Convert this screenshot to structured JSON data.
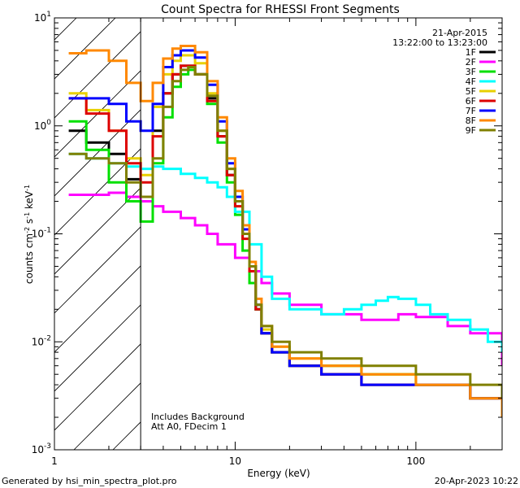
{
  "chart_data": {
    "type": "line",
    "title": "Count Spectra for RHESSI Front Segments",
    "xlabel": "Energy (keV)",
    "ylabel": "counts cm^-2 s^-1 keV^-1",
    "xscale": "log",
    "yscale": "log",
    "xlim": [
      1,
      300
    ],
    "ylim": [
      0.001,
      10
    ],
    "x_ticks": [
      "10",
      "100"
    ],
    "x_tick_values": [
      10,
      100
    ],
    "y_ticks": [
      "10^-3",
      "10^-2",
      "10^-1",
      "10^0",
      "10^1"
    ],
    "y_tick_values": [
      0.001,
      0.01,
      0.1,
      1,
      10
    ],
    "annotation_date": "21-Apr-2015",
    "annotation_time": "13:22:00 to 13:23:00",
    "lower_threshold_keV": 3,
    "notes": [
      "Includes Background",
      "Att A0, FDecim 1"
    ],
    "series": [
      {
        "name": "1F",
        "color": "#000000",
        "x": [
          1.2,
          1.5,
          2,
          2.5,
          3,
          3.5,
          4,
          4.5,
          5,
          5.5,
          6,
          7,
          8,
          9,
          10,
          11,
          12,
          13,
          14,
          16,
          20,
          30,
          50,
          100,
          200,
          300
        ],
        "y": [
          0.9,
          0.7,
          0.55,
          0.32,
          0.22,
          0.9,
          2.0,
          3.0,
          3.6,
          3.6,
          3.0,
          1.8,
          0.8,
          0.35,
          0.2,
          0.1,
          0.05,
          0.02,
          0.012,
          0.008,
          0.006,
          0.005,
          0.004,
          0.004,
          0.003,
          0.002
        ]
      },
      {
        "name": "2F",
        "color": "#ff00ff",
        "x": [
          1.2,
          1.5,
          2,
          2.5,
          3,
          3.5,
          4,
          5,
          6,
          7,
          8,
          10,
          12,
          14,
          16,
          20,
          30,
          50,
          80,
          100,
          150,
          200,
          300
        ],
        "y": [
          0.23,
          0.23,
          0.24,
          0.22,
          0.2,
          0.18,
          0.16,
          0.14,
          0.12,
          0.1,
          0.08,
          0.06,
          0.045,
          0.035,
          0.028,
          0.022,
          0.018,
          0.016,
          0.018,
          0.017,
          0.014,
          0.012,
          0.006
        ]
      },
      {
        "name": "3F",
        "color": "#00e000",
        "x": [
          1.2,
          1.5,
          2,
          2.5,
          3,
          3.5,
          4,
          4.5,
          5,
          5.5,
          6,
          7,
          8,
          9,
          10,
          11,
          12,
          13,
          14,
          16,
          20,
          30,
          50,
          100,
          200,
          300
        ],
        "y": [
          1.1,
          0.6,
          0.3,
          0.2,
          0.13,
          0.45,
          1.2,
          2.3,
          3.0,
          3.3,
          3.0,
          1.6,
          0.7,
          0.3,
          0.15,
          0.07,
          0.035,
          0.02,
          0.012,
          0.008,
          0.006,
          0.006,
          0.005,
          0.004,
          0.003,
          0.002
        ]
      },
      {
        "name": "4F",
        "color": "#00ffff",
        "x": [
          1.2,
          1.5,
          2,
          2.5,
          3,
          3.5,
          4,
          5,
          6,
          7,
          8,
          9,
          10,
          12,
          14,
          16,
          20,
          30,
          40,
          50,
          60,
          70,
          80,
          100,
          120,
          150,
          200,
          250,
          300
        ],
        "y": [
          0.55,
          0.5,
          0.45,
          0.42,
          0.4,
          0.42,
          0.4,
          0.36,
          0.33,
          0.3,
          0.27,
          0.22,
          0.16,
          0.08,
          0.04,
          0.025,
          0.02,
          0.018,
          0.02,
          0.022,
          0.024,
          0.026,
          0.025,
          0.022,
          0.018,
          0.016,
          0.013,
          0.01,
          0.008
        ]
      },
      {
        "name": "5F",
        "color": "#e8d000",
        "x": [
          1.2,
          1.5,
          2,
          2.5,
          3,
          3.5,
          4,
          4.5,
          5,
          5.5,
          6,
          7,
          8,
          9,
          10,
          11,
          12,
          13,
          14,
          16,
          20,
          30,
          50,
          100,
          200,
          300
        ],
        "y": [
          2.0,
          1.4,
          0.9,
          0.5,
          0.35,
          1.5,
          3.0,
          4.0,
          4.5,
          4.5,
          3.8,
          2.0,
          0.9,
          0.4,
          0.2,
          0.1,
          0.05,
          0.022,
          0.013,
          0.009,
          0.007,
          0.006,
          0.005,
          0.004,
          0.003,
          0.002
        ]
      },
      {
        "name": "6F",
        "color": "#dd0000",
        "x": [
          1.2,
          1.5,
          2,
          2.5,
          3,
          3.5,
          4,
          4.5,
          5,
          5.5,
          6,
          7,
          8,
          9,
          10,
          11,
          12,
          13,
          14,
          16,
          20,
          30,
          50,
          100,
          200,
          300
        ],
        "y": [
          1.8,
          1.3,
          0.9,
          0.45,
          0.3,
          0.8,
          2.0,
          3.0,
          3.6,
          3.6,
          3.0,
          1.7,
          0.8,
          0.35,
          0.18,
          0.09,
          0.045,
          0.02,
          0.012,
          0.008,
          0.006,
          0.005,
          0.004,
          0.004,
          0.003,
          0.002
        ]
      },
      {
        "name": "7F",
        "color": "#0000ff",
        "x": [
          1.2,
          1.5,
          2,
          2.5,
          3,
          3.5,
          4,
          4.5,
          5,
          5.5,
          6,
          7,
          8,
          9,
          10,
          11,
          12,
          13,
          14,
          16,
          20,
          30,
          50,
          100,
          200,
          300
        ],
        "y": [
          1.8,
          1.8,
          1.6,
          1.1,
          0.9,
          1.6,
          3.5,
          4.5,
          5.0,
          5.0,
          4.3,
          2.4,
          1.1,
          0.45,
          0.22,
          0.11,
          0.05,
          0.022,
          0.012,
          0.008,
          0.006,
          0.005,
          0.004,
          0.004,
          0.003,
          0.002
        ]
      },
      {
        "name": "8F",
        "color": "#ff8800",
        "x": [
          1.2,
          1.5,
          2,
          2.5,
          3,
          3.5,
          4,
          4.5,
          5,
          5.5,
          6,
          7,
          8,
          9,
          10,
          11,
          12,
          13,
          14,
          16,
          20,
          30,
          50,
          100,
          200,
          300
        ],
        "y": [
          4.7,
          5.0,
          4.0,
          2.5,
          1.7,
          2.5,
          4.2,
          5.2,
          5.5,
          5.5,
          4.8,
          2.6,
          1.2,
          0.5,
          0.25,
          0.12,
          0.055,
          0.025,
          0.014,
          0.009,
          0.007,
          0.006,
          0.005,
          0.004,
          0.003,
          0.002
        ]
      },
      {
        "name": "9F",
        "color": "#808000",
        "x": [
          1.2,
          1.5,
          2,
          2.5,
          3,
          3.5,
          4,
          4.5,
          5,
          5.5,
          6,
          7,
          8,
          9,
          10,
          11,
          12,
          13,
          14,
          16,
          20,
          30,
          50,
          100,
          200,
          300
        ],
        "y": [
          0.55,
          0.5,
          0.45,
          0.3,
          0.22,
          0.5,
          1.5,
          2.6,
          3.3,
          3.5,
          3.0,
          1.9,
          0.9,
          0.4,
          0.2,
          0.1,
          0.05,
          0.022,
          0.014,
          0.01,
          0.008,
          0.007,
          0.006,
          0.005,
          0.004,
          0.003
        ]
      }
    ]
  },
  "footer": {
    "generated_by": "Generated by hsi_min_spectra_plot.pro",
    "timestamp": "20-Apr-2023 10:22"
  }
}
